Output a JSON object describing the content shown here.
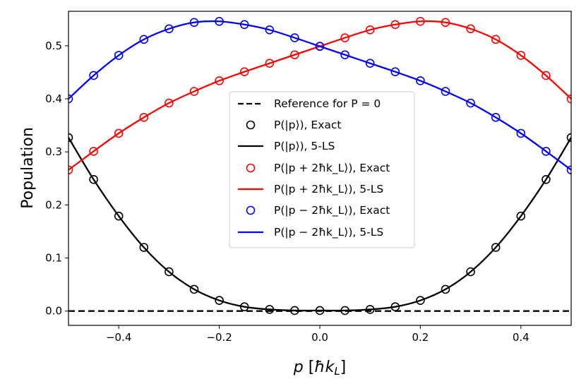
{
  "chart_data": {
    "type": "line",
    "title": "",
    "xlabel": "p [ħk_L]",
    "ylabel": "Population",
    "xlim": [
      -0.5,
      0.5
    ],
    "ylim": [
      -0.027,
      0.565
    ],
    "xticks": [
      -0.4,
      -0.2,
      0.0,
      0.2,
      0.4
    ],
    "xtick_labels": [
      "−0.4",
      "−0.2",
      "0.0",
      "0.2",
      "0.4"
    ],
    "yticks": [
      0.0,
      0.1,
      0.2,
      0.3,
      0.4,
      0.5
    ],
    "ytick_labels": [
      "0.0",
      "0.1",
      "0.2",
      "0.3",
      "0.4",
      "0.5"
    ],
    "grid": false,
    "legend_position": "center",
    "x": [
      -0.5,
      -0.45,
      -0.4,
      -0.35,
      -0.3,
      -0.25,
      -0.2,
      -0.15,
      -0.1,
      -0.05,
      0.0,
      0.05,
      0.1,
      0.15,
      0.2,
      0.25,
      0.3,
      0.35,
      0.4,
      0.45,
      0.5
    ],
    "series": [
      {
        "name": "Reference for P = 0",
        "style": "dashed",
        "color": "#000000",
        "x": [
          -0.5,
          0.5
        ],
        "values": [
          0.0,
          0.0
        ]
      },
      {
        "name": "P(|p⟩), Exact",
        "style": "markers",
        "color": "#000000",
        "values": [
          0.327,
          0.248,
          0.179,
          0.12,
          0.074,
          0.041,
          0.02,
          0.008,
          0.003,
          0.001,
          0.001,
          0.001,
          0.003,
          0.008,
          0.02,
          0.041,
          0.074,
          0.12,
          0.179,
          0.248,
          0.327
        ]
      },
      {
        "name": "P(|p⟩), 5-LS",
        "style": "line",
        "color": "#000000",
        "values": [
          0.327,
          0.248,
          0.179,
          0.12,
          0.074,
          0.041,
          0.02,
          0.008,
          0.003,
          0.001,
          0.001,
          0.001,
          0.003,
          0.008,
          0.02,
          0.041,
          0.074,
          0.12,
          0.179,
          0.248,
          0.327
        ]
      },
      {
        "name": "P(|p + 2ħk_L⟩), Exact",
        "style": "markers",
        "color": "#ff0000",
        "values": [
          0.266,
          0.301,
          0.335,
          0.365,
          0.392,
          0.414,
          0.434,
          0.451,
          0.467,
          0.483,
          0.499,
          0.515,
          0.53,
          0.54,
          0.546,
          0.544,
          0.532,
          0.512,
          0.482,
          0.444,
          0.4
        ]
      },
      {
        "name": "P(|p + 2ħk_L⟩), 5-LS",
        "style": "line",
        "color": "#ff0000",
        "values": [
          0.266,
          0.301,
          0.335,
          0.365,
          0.392,
          0.414,
          0.434,
          0.451,
          0.467,
          0.483,
          0.499,
          0.515,
          0.53,
          0.54,
          0.546,
          0.544,
          0.532,
          0.512,
          0.482,
          0.444,
          0.4
        ]
      },
      {
        "name": "P(|p − 2ħk_L⟩), Exact",
        "style": "markers",
        "color": "#0000ff",
        "values": [
          0.4,
          0.444,
          0.482,
          0.512,
          0.532,
          0.544,
          0.546,
          0.54,
          0.53,
          0.515,
          0.499,
          0.483,
          0.467,
          0.451,
          0.434,
          0.414,
          0.392,
          0.365,
          0.335,
          0.301,
          0.266
        ]
      },
      {
        "name": "P(|p − 2ħk_L⟩), 5-LS",
        "style": "line",
        "color": "#0000ff",
        "values": [
          0.4,
          0.444,
          0.482,
          0.512,
          0.532,
          0.544,
          0.546,
          0.54,
          0.53,
          0.515,
          0.499,
          0.483,
          0.467,
          0.451,
          0.434,
          0.414,
          0.392,
          0.365,
          0.335,
          0.301,
          0.266
        ]
      }
    ]
  },
  "legend": {
    "ref_label": "Reference for P = 0",
    "p_exact_label": "P(|p⟩), Exact",
    "p_5ls_label": "P(|p⟩), 5-LS",
    "pplus_exact_label": "P(|p + 2ħk_L⟩), Exact",
    "pplus_5ls_label": "P(|p + 2ħk_L⟩), 5-LS",
    "pminus_exact_label": "P(|p − 2ħk_L⟩), Exact",
    "pminus_5ls_label": "P(|p − 2ħk_L⟩), 5-LS"
  },
  "colors": {
    "black": "#000000",
    "red": "#ff0000",
    "blue": "#0000ff"
  }
}
